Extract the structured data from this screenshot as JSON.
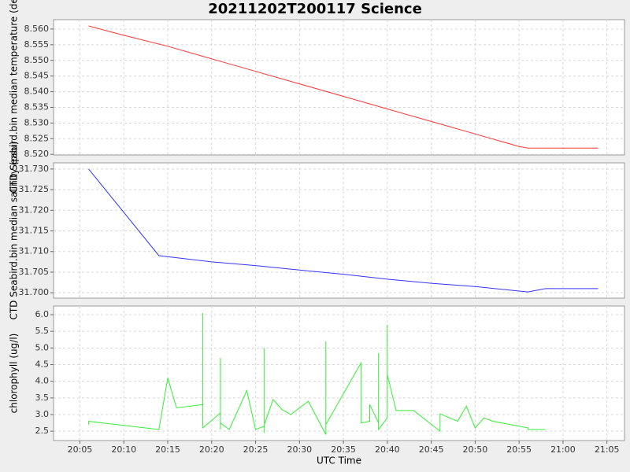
{
  "chart_data": [
    {
      "type": "line",
      "title": "20211202T200117 Science",
      "ylabel": "CTD Seabird.bin median temperature (degC)",
      "x": [
        "20:06",
        "20:10",
        "20:15",
        "20:20",
        "20:25",
        "20:30",
        "20:35",
        "20:40",
        "20:45",
        "20:50",
        "20:55",
        "20:56",
        "21:00",
        "21:04"
      ],
      "series": [
        {
          "name": "temperature",
          "color": "#ff3333",
          "values": [
            8.561,
            8.558,
            8.5545,
            8.5505,
            8.5465,
            8.5425,
            8.5385,
            8.5345,
            8.5305,
            8.5265,
            8.5225,
            8.522,
            8.522,
            8.522
          ]
        }
      ],
      "ylim": [
        8.5198,
        8.563
      ],
      "yticks": [
        {
          "value": 8.52,
          "label": "8.520"
        },
        {
          "value": 8.525,
          "label": "8.525"
        },
        {
          "value": 8.53,
          "label": "8.530"
        },
        {
          "value": 8.535,
          "label": "8.535"
        },
        {
          "value": 8.54,
          "label": "8.540"
        },
        {
          "value": 8.545,
          "label": "8.545"
        },
        {
          "value": 8.55,
          "label": "8.550"
        },
        {
          "value": 8.555,
          "label": "8.555"
        },
        {
          "value": 8.56,
          "label": "8.560"
        }
      ],
      "grid": true
    },
    {
      "type": "line",
      "ylabel": "CTD Seabird.bin median salinity (psu)",
      "x": [
        "20:06",
        "20:14",
        "20:16",
        "20:20",
        "20:25",
        "20:30",
        "20:35",
        "20:40",
        "20:45",
        "20:50",
        "20:56",
        "20:58",
        "21:04"
      ],
      "series": [
        {
          "name": "salinity",
          "color": "#3333ff",
          "values": [
            31.73,
            31.709,
            31.7085,
            31.7075,
            31.7066,
            31.7055,
            31.7045,
            31.7033,
            31.7023,
            31.7015,
            31.7002,
            31.701,
            31.701
          ]
        }
      ],
      "ylim": [
        31.6987,
        31.7315
      ],
      "yticks": [
        {
          "value": 31.7,
          "label": "31.700"
        },
        {
          "value": 31.705,
          "label": "31.705"
        },
        {
          "value": 31.71,
          "label": "31.710"
        },
        {
          "value": 31.715,
          "label": "31.715"
        },
        {
          "value": 31.72,
          "label": "31.720"
        },
        {
          "value": 31.725,
          "label": "31.725"
        },
        {
          "value": 31.73,
          "label": "31.730"
        }
      ],
      "grid": true
    },
    {
      "type": "line",
      "ylabel": "chlorophyll (ug/l)",
      "xlabel": "UTC Time",
      "x": [
        "20:06",
        "20:06",
        "20:14",
        "20:15",
        "20:16",
        "20:19",
        "20:19",
        "20:19",
        "20:19",
        "20:19",
        "20:21",
        "20:21",
        "20:21",
        "20:21",
        "20:22",
        "20:24",
        "20:25",
        "20:26",
        "20:26",
        "20:26",
        "20:26",
        "20:27",
        "20:28",
        "20:29",
        "20:31",
        "20:33",
        "20:33",
        "20:33",
        "20:37",
        "20:37",
        "20:38",
        "20:38",
        "20:39",
        "20:39",
        "20:39",
        "20:40",
        "20:40",
        "20:40",
        "20:40",
        "20:41",
        "20:43",
        "20:46",
        "20:46",
        "20:48",
        "20:49",
        "20:50",
        "20:51",
        "20:52",
        "20:56",
        "20:56",
        "20:58"
      ],
      "series": [
        {
          "name": "chlorophyll",
          "color": "#33ee33",
          "values": [
            2.7,
            2.8,
            2.55,
            4.1,
            3.2,
            3.3,
            5.55,
            3.0,
            6.05,
            2.6,
            3.05,
            2.55,
            4.7,
            2.75,
            2.55,
            3.72,
            2.55,
            2.65,
            2.45,
            5.0,
            2.7,
            3.45,
            3.15,
            3.0,
            3.4,
            2.4,
            5.2,
            2.7,
            4.55,
            2.75,
            2.8,
            3.3,
            2.75,
            4.85,
            2.55,
            2.9,
            2.95,
            5.7,
            4.2,
            3.12,
            3.12,
            2.5,
            3.02,
            2.8,
            3.25,
            2.6,
            2.9,
            2.8,
            2.6,
            2.55,
            2.55
          ]
        }
      ],
      "ylim": [
        2.22,
        6.26
      ],
      "yticks": [
        {
          "value": 2.5,
          "label": "2.5"
        },
        {
          "value": 3,
          "label": "3.0"
        },
        {
          "value": 3.5,
          "label": "3.5"
        },
        {
          "value": 4,
          "label": "4.0"
        },
        {
          "value": 4.5,
          "label": "4.5"
        },
        {
          "value": 5,
          "label": "5.0"
        },
        {
          "value": 5.5,
          "label": "5.5"
        },
        {
          "value": 6,
          "label": "6.0"
        }
      ],
      "xlim": [
        "20:02",
        "21:07"
      ],
      "xticks": [
        "20:05",
        "20:10",
        "20:15",
        "20:20",
        "20:25",
        "20:30",
        "20:35",
        "20:40",
        "20:45",
        "20:50",
        "20:55",
        "21:00",
        "21:05"
      ],
      "grid": true
    }
  ]
}
